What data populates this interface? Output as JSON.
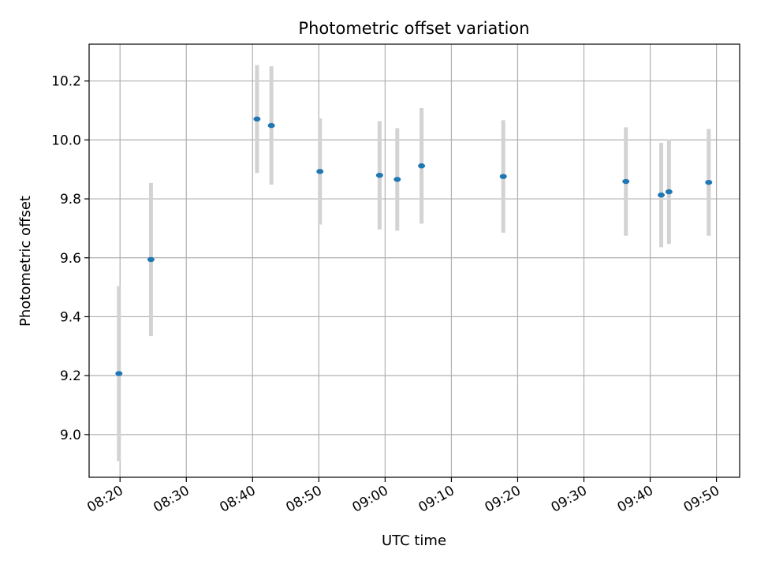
{
  "chart_data": {
    "type": "scatter",
    "title": "Photometric offset variation",
    "xlabel": "UTC time",
    "ylabel": "Photometric offset",
    "x_is_time": true,
    "xlim": [
      "08:15:20",
      "09:53:30"
    ],
    "ylim": [
      8.855,
      10.325
    ],
    "x_ticks": [
      "08:20",
      "08:30",
      "08:40",
      "08:50",
      "09:00",
      "09:10",
      "09:20",
      "09:30",
      "09:40",
      "09:50"
    ],
    "y_ticks": [
      "9.0",
      "9.2",
      "9.4",
      "9.6",
      "9.8",
      "10.0",
      "10.2"
    ],
    "grid": true,
    "marker_color": "#1f77b4",
    "errorbar_color": "#d3d3d3",
    "points": [
      {
        "x": "08:19:50",
        "y": 9.207,
        "err": 0.297
      },
      {
        "x": "08:24:40",
        "y": 9.594,
        "err": 0.26
      },
      {
        "x": "08:40:40",
        "y": 10.071,
        "err": 0.183
      },
      {
        "x": "08:42:50",
        "y": 10.049,
        "err": 0.201
      },
      {
        "x": "08:50:10",
        "y": 9.893,
        "err": 0.18
      },
      {
        "x": "08:59:10",
        "y": 9.88,
        "err": 0.184
      },
      {
        "x": "09:01:50",
        "y": 9.866,
        "err": 0.174
      },
      {
        "x": "09:05:30",
        "y": 9.912,
        "err": 0.196
      },
      {
        "x": "09:17:50",
        "y": 9.876,
        "err": 0.191
      },
      {
        "x": "09:36:20",
        "y": 9.859,
        "err": 0.184
      },
      {
        "x": "09:41:40",
        "y": 9.813,
        "err": 0.177
      },
      {
        "x": "09:42:50",
        "y": 9.824,
        "err": 0.177
      },
      {
        "x": "09:48:50",
        "y": 9.856,
        "err": 0.181
      }
    ]
  }
}
